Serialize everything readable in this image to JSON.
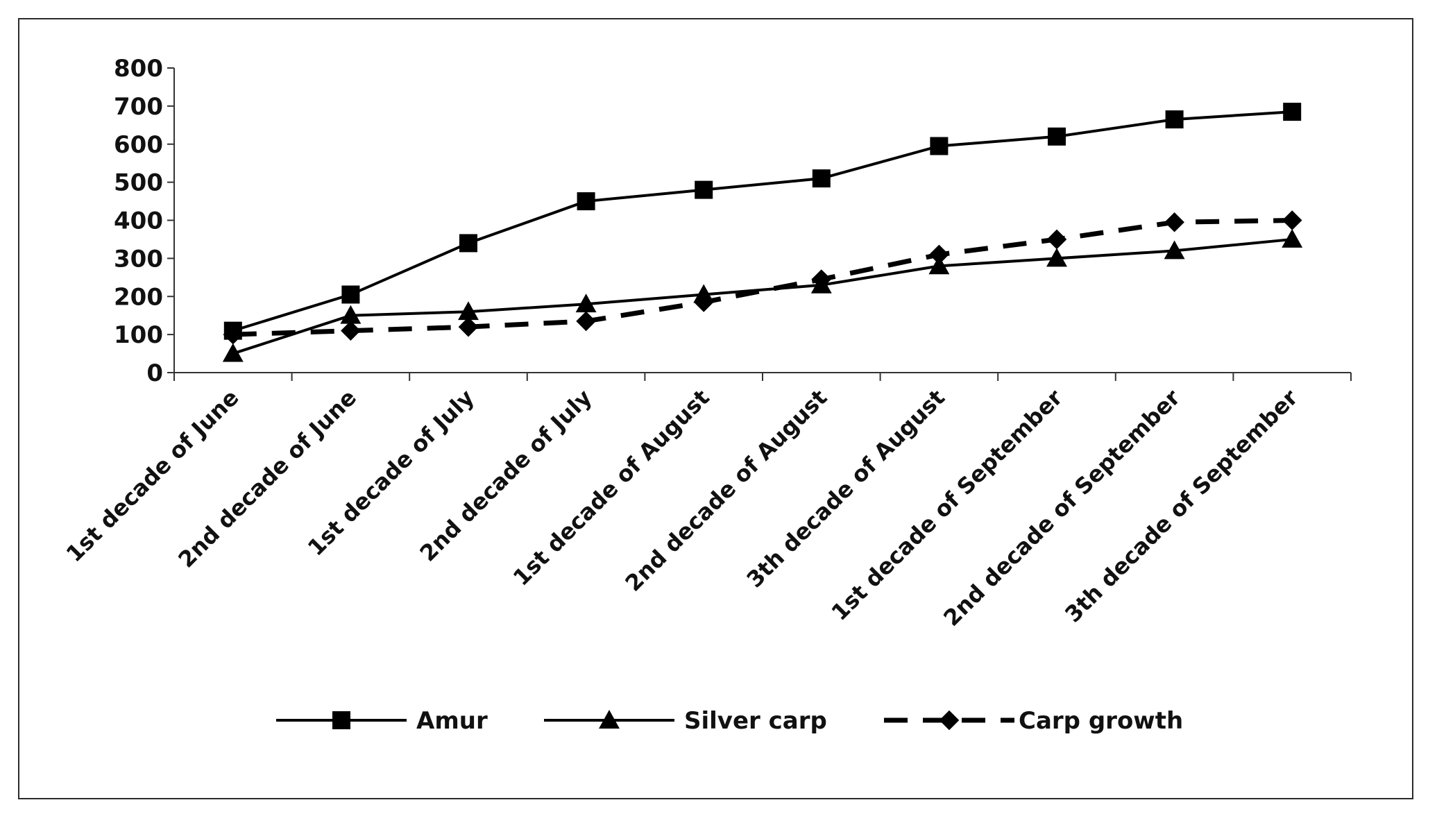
{
  "chart_data": {
    "type": "line",
    "title": "",
    "xlabel": "",
    "ylabel": "",
    "ylim": [
      0,
      800
    ],
    "yticks": [
      0,
      100,
      200,
      300,
      400,
      500,
      600,
      700,
      800
    ],
    "grid": false,
    "legend_position": "bottom",
    "categories": [
      "1st decade of June",
      "2nd decade of June",
      "1st decade of July",
      "2nd decade of July",
      "1st decade of August",
      "2nd decade of August",
      "3th decade of August",
      "1st decade of September",
      "2nd decade of September",
      "3th decade of September"
    ],
    "series": [
      {
        "name": "Amur",
        "marker": "square",
        "line_style": "solid",
        "color": "#000000",
        "values": [
          110,
          205,
          340,
          450,
          480,
          510,
          595,
          620,
          665,
          685
        ]
      },
      {
        "name": "Silver carp",
        "marker": "triangle",
        "line_style": "solid",
        "color": "#000000",
        "values": [
          50,
          150,
          160,
          180,
          205,
          230,
          280,
          300,
          320,
          350
        ]
      },
      {
        "name": "Carp growth",
        "marker": "diamond",
        "line_style": "dashed",
        "color": "#000000",
        "values": [
          100,
          110,
          120,
          135,
          185,
          245,
          310,
          350,
          395,
          400
        ]
      }
    ]
  }
}
